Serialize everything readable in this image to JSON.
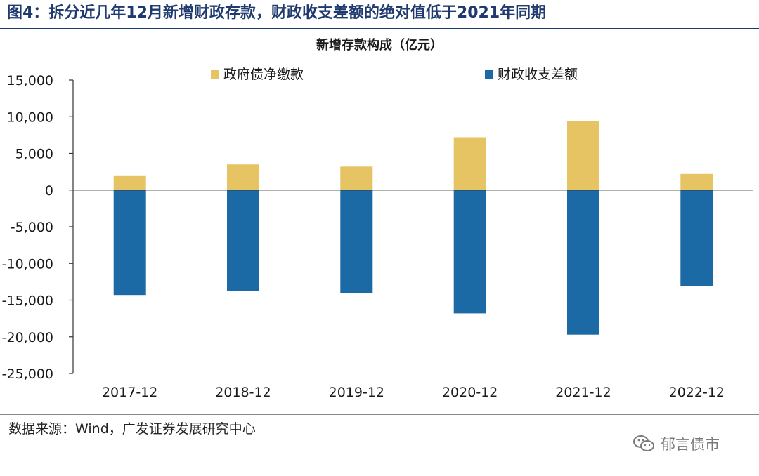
{
  "figure": {
    "title": "图4：拆分近几年12月新增财政存款，财政收支差额的绝对值低于2021年同期",
    "source": "数据来源：Wind，广发证券发展研究中心",
    "watermark": "郁言债市",
    "watermark_icon": "wechat-icon"
  },
  "chart_data": {
    "type": "bar",
    "stacked": true,
    "title": "新增存款构成（亿元）",
    "xlabel": "",
    "ylabel": "",
    "categories": [
      "2017-12",
      "2018-12",
      "2019-12",
      "2020-12",
      "2021-12",
      "2022-12"
    ],
    "series": [
      {
        "name": "政府债净缴款",
        "color": "#e6c463",
        "values": [
          2000,
          3500,
          3200,
          7200,
          9400,
          2200
        ]
      },
      {
        "name": "财政收支差额",
        "color": "#1b6aa5",
        "values": [
          -14300,
          -13800,
          -14000,
          -16800,
          -19700,
          -13100
        ]
      }
    ],
    "ylim": [
      -25000,
      15000
    ],
    "yticks": [
      15000,
      10000,
      5000,
      0,
      -5000,
      -10000,
      -15000,
      -20000,
      -25000
    ],
    "ytick_labels": [
      "15,000",
      "10,000",
      "5,000",
      "0",
      "-5,000",
      "-10,000",
      "-15,000",
      "-20,000",
      "-25,000"
    ],
    "grid": false,
    "legend_position": "top"
  }
}
